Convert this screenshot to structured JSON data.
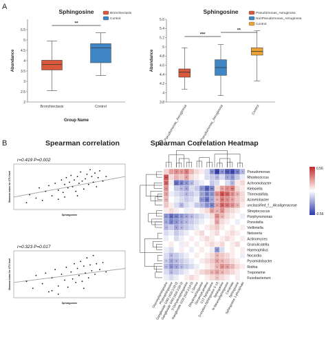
{
  "panels": {
    "a": {
      "label": "A"
    },
    "b": {
      "label": "B"
    },
    "c": {
      "label": "C"
    }
  },
  "chart_data": [
    {
      "id": "A1",
      "type": "box",
      "title": "Sphingosine",
      "xlabel": "Group Name",
      "ylabel": "Abundance",
      "ylim": [
        2,
        6
      ],
      "yticks": [
        2,
        2.5,
        3,
        3.5,
        4,
        4.5,
        5,
        5.5
      ],
      "significance": [
        {
          "from": 0,
          "to": 1,
          "label": "**"
        }
      ],
      "legend": {
        "position": "top-right",
        "entries": [
          "Bronchiectasis",
          "Control"
        ]
      },
      "series": [
        {
          "name": "Bronchiectasis",
          "color": "#d9573b",
          "min": 2.55,
          "q1": 3.55,
          "median": 3.82,
          "q3": 4.02,
          "max": 4.95
        },
        {
          "name": "Control",
          "color": "#3f86c6",
          "min": 3.28,
          "q1": 3.9,
          "median": 4.62,
          "q3": 4.82,
          "max": 5.35
        }
      ]
    },
    {
      "id": "A2",
      "type": "box",
      "title": "Sphingosine",
      "xlabel": "",
      "ylabel": "Abundance",
      "ylim": [
        3.8,
        5.6
      ],
      "yticks": [
        3.8,
        4,
        4.2,
        4.4,
        4.6,
        4.8,
        5,
        5.2,
        5.4,
        5.6
      ],
      "significance": [
        {
          "from": 0,
          "to": 1,
          "label": "***"
        },
        {
          "from": 1,
          "to": 2,
          "label": "**"
        }
      ],
      "legend": {
        "position": "top-right",
        "entries": [
          "Pseudomonas_Aeruginosa",
          "NonPseudomonas_Aeruginosa",
          "Control"
        ]
      },
      "series": [
        {
          "name": "Pseudomonas_Aeruginosa",
          "color": "#d9573b",
          "min": 4.08,
          "q1": 4.34,
          "median": 4.45,
          "q3": 4.52,
          "max": 4.98
        },
        {
          "name": "NonPseudomonas_Aeruginosa",
          "color": "#3f86c6",
          "min": 3.94,
          "q1": 4.38,
          "median": 4.55,
          "q3": 4.72,
          "max": 5.05
        },
        {
          "name": "Control",
          "color": "#eda238",
          "min": 4.26,
          "q1": 4.82,
          "median": 4.9,
          "q3": 4.98,
          "max": 5.35
        }
      ]
    },
    {
      "id": "B-title",
      "type": "scatter",
      "title": "Spearman correlation"
    },
    {
      "id": "B1",
      "type": "scatter",
      "annotation": "r=0.419  P=0.002",
      "xlabel": "Sphingosine",
      "ylabel": "Shannon index for OTU level",
      "xlim": [
        3,
        6.5
      ],
      "ylim": [
        1,
        5
      ],
      "points": [
        [
          3.4,
          1.6
        ],
        [
          3.5,
          2.3
        ],
        [
          3.7,
          2.0
        ],
        [
          3.8,
          2.9
        ],
        [
          3.9,
          1.8
        ],
        [
          4.0,
          2.6
        ],
        [
          4.1,
          3.1
        ],
        [
          4.2,
          2.2
        ],
        [
          4.3,
          3.3
        ],
        [
          4.4,
          2.7
        ],
        [
          4.5,
          3.6
        ],
        [
          4.55,
          2.5
        ],
        [
          4.6,
          3.2
        ],
        [
          4.65,
          3.8
        ],
        [
          4.7,
          2.9
        ],
        [
          4.75,
          3.4
        ],
        [
          4.8,
          4.0
        ],
        [
          4.85,
          3.0
        ],
        [
          4.9,
          3.6
        ],
        [
          4.95,
          2.6
        ],
        [
          5.0,
          3.9
        ],
        [
          5.05,
          3.3
        ],
        [
          5.1,
          4.3
        ],
        [
          5.15,
          3.5
        ],
        [
          5.2,
          2.8
        ],
        [
          5.25,
          3.7
        ],
        [
          5.3,
          4.1
        ],
        [
          5.35,
          3.2
        ],
        [
          5.4,
          4.5
        ],
        [
          5.45,
          3.9
        ],
        [
          5.5,
          3.4
        ],
        [
          5.55,
          4.2
        ],
        [
          5.6,
          3.0
        ],
        [
          5.65,
          3.8
        ],
        [
          5.7,
          4.4
        ],
        [
          5.8,
          3.5
        ],
        [
          5.9,
          3.9
        ],
        [
          4.4,
          1.9
        ],
        [
          4.6,
          2.1
        ],
        [
          5.0,
          2.2
        ]
      ],
      "trend": {
        "x0": 3,
        "y0": 2.1,
        "x1": 6.5,
        "y1": 3.9
      }
    },
    {
      "id": "B2",
      "type": "scatter",
      "annotation": "r=0.323  P=0.017",
      "xlabel": "Sphingosine",
      "ylabel": "Shannon index for OTU level",
      "xlim": [
        3,
        6.5
      ],
      "ylim": [
        1,
        5
      ],
      "points": [
        [
          3.4,
          2.4
        ],
        [
          3.6,
          1.8
        ],
        [
          3.7,
          2.9
        ],
        [
          3.9,
          2.2
        ],
        [
          4.0,
          3.1
        ],
        [
          4.1,
          1.5
        ],
        [
          4.2,
          2.7
        ],
        [
          4.3,
          3.4
        ],
        [
          4.4,
          2.0
        ],
        [
          4.5,
          3.0
        ],
        [
          4.6,
          2.5
        ],
        [
          4.65,
          3.6
        ],
        [
          4.7,
          1.9
        ],
        [
          4.8,
          3.2
        ],
        [
          4.85,
          2.6
        ],
        [
          4.9,
          3.9
        ],
        [
          4.95,
          2.3
        ],
        [
          5.0,
          3.5
        ],
        [
          5.05,
          2.9
        ],
        [
          5.1,
          4.1
        ],
        [
          5.15,
          2.4
        ],
        [
          5.2,
          3.7
        ],
        [
          5.25,
          3.1
        ],
        [
          5.3,
          4.4
        ],
        [
          5.35,
          2.7
        ],
        [
          5.4,
          3.8
        ],
        [
          5.45,
          3.3
        ],
        [
          5.5,
          4.6
        ],
        [
          5.55,
          3.0
        ],
        [
          5.6,
          3.9
        ],
        [
          5.7,
          3.4
        ],
        [
          5.8,
          4.0
        ],
        [
          5.9,
          3.2
        ],
        [
          4.4,
          1.3
        ],
        [
          4.2,
          1.6
        ],
        [
          5.2,
          1.8
        ]
      ],
      "trend": {
        "x0": 3,
        "y0": 2.3,
        "x1": 6.5,
        "y1": 3.5
      }
    },
    {
      "id": "C",
      "type": "heatmap",
      "title": "Spearman Correlation Heatmap",
      "colorbar": {
        "max": 0.56,
        "min": -0.56,
        "max_label": "0.56",
        "min_label": "-0.56",
        "colors": [
          "#2c38a8",
          "#ffffff",
          "#c22a2a"
        ]
      },
      "rows": [
        "Pseudomonas",
        "Rhodococcus",
        "Achromobacter",
        "Klebsiella",
        "Thermobifida",
        "Acinetobacter",
        "unclassified_f__Alcaligenaceae",
        "Streptococcus",
        "Porphyromonas",
        "Prevotella",
        "Veillonella",
        "Neisseria",
        "Actinomyces",
        "Granulicatella",
        "Haemophilus",
        "Nocardia",
        "Pyramidobacter",
        "Rothia",
        "Treponeme",
        "Fusobacterium"
      ],
      "columns": [
        "Glucosylsphingosine",
        "Phytosphingosine",
        "Ganglioside GM2 (d18:1/18:0)",
        "Ganglioside GM3 (d18:1/20:0)",
        "3-Dehydrosphinganine",
        "Ganglioside GD2 (d18:1/14:0)",
        "L-Serine",
        "Dihydrosphingosine",
        "Decanoylcarnitine",
        "C17 Sphingosine",
        "D-erythro-Sphingosine C-15",
        "Sphinganine",
        "N-Stearoylsphingosine",
        "Ceramide",
        "Sphingosine",
        "Sphingosine 1-phosphate"
      ],
      "values": [
        [
          0.12,
          0.25,
          0.3,
          0.28,
          0.35,
          0.2,
          0.1,
          0.05,
          -0.1,
          -0.3,
          -0.52,
          -0.3,
          -0.45,
          -0.5,
          -0.35,
          -0.2
        ],
        [
          0.45,
          0.1,
          0.2,
          0.15,
          0.25,
          0.1,
          0.05,
          0.0,
          -0.1,
          -0.15,
          -0.2,
          -0.1,
          -0.25,
          -0.3,
          -0.15,
          -0.05
        ],
        [
          0.4,
          0.05,
          -0.4,
          -0.35,
          -0.3,
          -0.2,
          -0.1,
          -0.05,
          0.0,
          -0.15,
          -0.1,
          0.0,
          -0.1,
          -0.2,
          0.05,
          0.1
        ],
        [
          0.3,
          0.0,
          -0.15,
          -0.2,
          -0.25,
          -0.1,
          -0.15,
          -0.3,
          -0.45,
          -0.35,
          0.1,
          0.25,
          0.3,
          0.35,
          0.1,
          0.05
        ],
        [
          0.25,
          -0.05,
          -0.1,
          -0.15,
          -0.2,
          -0.15,
          -0.1,
          -0.25,
          -0.35,
          -0.3,
          0.3,
          0.45,
          0.4,
          0.3,
          0.2,
          0.1
        ],
        [
          0.2,
          0.0,
          -0.05,
          -0.1,
          -0.15,
          -0.1,
          -0.05,
          -0.3,
          -0.4,
          -0.25,
          0.2,
          0.35,
          0.3,
          0.25,
          0.15,
          0.1
        ],
        [
          0.15,
          0.05,
          -0.1,
          -0.2,
          -0.1,
          -0.05,
          -0.15,
          -0.2,
          -0.3,
          -0.35,
          0.25,
          0.4,
          0.35,
          0.3,
          0.2,
          0.05
        ],
        [
          0.05,
          0.1,
          0.05,
          0.0,
          -0.05,
          0.05,
          0.0,
          0.05,
          0.1,
          0.25,
          0.2,
          0.3,
          0.15,
          0.1,
          0.05,
          0.0
        ],
        [
          -0.3,
          -0.4,
          -0.35,
          -0.3,
          -0.25,
          -0.2,
          -0.15,
          -0.1,
          -0.05,
          0.1,
          0.3,
          0.2,
          0.1,
          0.05,
          0.0,
          -0.05
        ],
        [
          -0.25,
          -0.35,
          -0.3,
          -0.25,
          -0.2,
          -0.15,
          -0.1,
          -0.05,
          0.0,
          0.05,
          0.25,
          0.1,
          0.05,
          0.0,
          -0.05,
          0.0
        ],
        [
          -0.2,
          -0.15,
          -0.25,
          -0.2,
          -0.15,
          -0.1,
          -0.05,
          0.0,
          0.05,
          0.1,
          0.15,
          0.05,
          0.0,
          0.05,
          0.0,
          0.05
        ],
        [
          -0.1,
          -0.05,
          -0.15,
          -0.1,
          -0.05,
          0.0,
          0.05,
          0.1,
          0.0,
          0.05,
          0.1,
          0.0,
          0.05,
          0.1,
          0.05,
          0.0
        ],
        [
          -0.05,
          0.0,
          -0.1,
          -0.05,
          0.0,
          0.05,
          0.0,
          0.05,
          0.1,
          0.05,
          0.0,
          0.05,
          0.1,
          0.05,
          0.0,
          0.05
        ],
        [
          0.0,
          0.05,
          0.0,
          -0.05,
          0.05,
          0.0,
          0.05,
          0.0,
          0.05,
          0.1,
          0.05,
          0.1,
          0.0,
          0.05,
          0.1,
          0.0
        ],
        [
          -0.05,
          -0.1,
          0.0,
          0.05,
          0.0,
          -0.05,
          0.0,
          0.05,
          0.0,
          -0.05,
          -0.3,
          -0.1,
          0.0,
          0.05,
          0.0,
          0.05
        ],
        [
          -0.1,
          -0.2,
          -0.15,
          -0.1,
          -0.05,
          0.0,
          0.05,
          0.0,
          0.05,
          0.1,
          0.2,
          0.15,
          0.1,
          0.05,
          0.0,
          -0.05
        ],
        [
          -0.15,
          -0.25,
          -0.2,
          -0.15,
          -0.1,
          -0.05,
          0.0,
          0.05,
          0.1,
          0.15,
          0.25,
          0.2,
          0.15,
          0.1,
          0.05,
          0.0
        ],
        [
          -0.2,
          -0.3,
          -0.25,
          -0.2,
          -0.15,
          -0.1,
          -0.05,
          0.0,
          0.05,
          0.1,
          0.2,
          0.3,
          0.25,
          0.2,
          0.1,
          0.05
        ],
        [
          -0.1,
          -0.2,
          -0.15,
          -0.1,
          -0.05,
          0.0,
          0.05,
          0.1,
          0.15,
          0.2,
          0.25,
          0.2,
          0.15,
          0.1,
          0.05,
          0.0
        ],
        [
          -0.05,
          -0.1,
          -0.05,
          0.0,
          0.05,
          0.1,
          0.05,
          0.0,
          0.05,
          0.1,
          0.15,
          0.1,
          0.05,
          0.0,
          0.05,
          0.0
        ]
      ],
      "stars": [
        [
          0,
          0,
          1,
          1,
          1,
          0,
          0,
          0,
          0,
          2,
          3,
          2,
          3,
          3,
          2,
          1
        ],
        [
          2,
          0,
          0,
          0,
          1,
          0,
          0,
          0,
          0,
          0,
          1,
          0,
          1,
          1,
          0,
          0
        ],
        [
          2,
          0,
          2,
          2,
          1,
          1,
          0,
          0,
          0,
          0,
          0,
          0,
          0,
          1,
          0,
          0
        ],
        [
          1,
          0,
          0,
          1,
          1,
          0,
          0,
          1,
          2,
          2,
          0,
          1,
          1,
          2,
          0,
          0
        ],
        [
          1,
          0,
          0,
          0,
          1,
          0,
          0,
          1,
          2,
          1,
          1,
          2,
          2,
          1,
          1,
          0
        ],
        [
          1,
          0,
          0,
          0,
          0,
          0,
          0,
          1,
          2,
          1,
          1,
          2,
          1,
          1,
          0,
          0
        ],
        [
          0,
          0,
          0,
          1,
          0,
          0,
          0,
          1,
          1,
          2,
          1,
          2,
          2,
          1,
          1,
          0
        ],
        [
          0,
          0,
          0,
          0,
          0,
          0,
          0,
          0,
          0,
          1,
          1,
          1,
          0,
          0,
          0,
          0
        ],
        [
          1,
          2,
          2,
          1,
          1,
          1,
          0,
          0,
          0,
          0,
          1,
          1,
          0,
          0,
          0,
          0
        ],
        [
          1,
          1,
          1,
          1,
          1,
          0,
          0,
          0,
          0,
          0,
          1,
          0,
          0,
          0,
          0,
          0
        ],
        [
          1,
          0,
          1,
          1,
          0,
          0,
          0,
          0,
          0,
          0,
          0,
          0,
          0,
          0,
          0,
          0
        ],
        [
          0,
          0,
          0,
          0,
          0,
          0,
          0,
          0,
          0,
          0,
          0,
          0,
          0,
          0,
          0,
          0
        ],
        [
          0,
          0,
          0,
          0,
          0,
          0,
          0,
          0,
          0,
          0,
          0,
          0,
          0,
          0,
          0,
          0
        ],
        [
          0,
          0,
          0,
          0,
          0,
          0,
          0,
          0,
          0,
          0,
          0,
          0,
          0,
          0,
          0,
          0
        ],
        [
          0,
          0,
          0,
          0,
          0,
          0,
          0,
          0,
          0,
          0,
          1,
          0,
          0,
          0,
          0,
          0
        ],
        [
          0,
          1,
          0,
          0,
          0,
          0,
          0,
          0,
          0,
          0,
          1,
          0,
          0,
          0,
          0,
          0
        ],
        [
          1,
          1,
          1,
          0,
          0,
          0,
          0,
          0,
          0,
          0,
          1,
          1,
          0,
          0,
          0,
          0
        ],
        [
          1,
          1,
          1,
          1,
          0,
          0,
          0,
          0,
          0,
          0,
          1,
          1,
          1,
          0,
          0,
          0
        ],
        [
          0,
          1,
          0,
          0,
          0,
          0,
          0,
          0,
          0,
          1,
          1,
          1,
          0,
          0,
          0,
          0
        ],
        [
          0,
          0,
          0,
          0,
          0,
          0,
          0,
          0,
          0,
          0,
          1,
          0,
          0,
          0,
          0,
          0
        ]
      ]
    }
  ]
}
